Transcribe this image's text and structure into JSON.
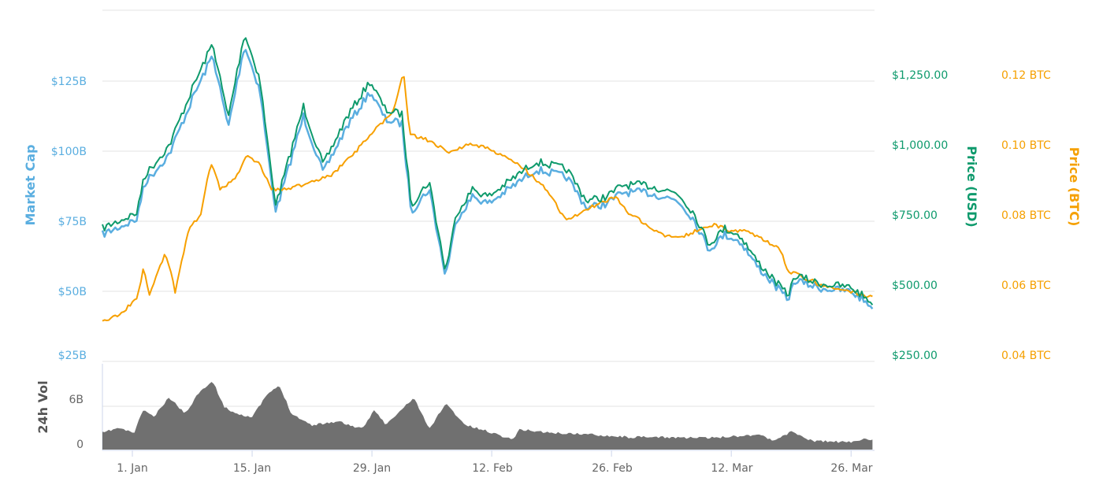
{
  "chart_data": {
    "type": "line",
    "x_unit": "days since 1 Jan",
    "xlim": [
      -3.5,
      86.6
    ],
    "x_ticks": [
      {
        "day": 0,
        "label": "1. Jan"
      },
      {
        "day": 14,
        "label": "15. Jan"
      },
      {
        "day": 28,
        "label": "29. Jan"
      },
      {
        "day": 42,
        "label": "12. Feb"
      },
      {
        "day": 56,
        "label": "26. Feb"
      },
      {
        "day": 70,
        "label": "12. Mar"
      },
      {
        "day": 84,
        "label": "26. Mar"
      }
    ],
    "axes": {
      "market_cap": {
        "title": "Market Cap",
        "ylim": [
          25,
          150
        ],
        "ticks": [
          {
            "v": 125,
            "label": "$125B"
          },
          {
            "v": 100,
            "label": "$100B"
          },
          {
            "v": 75,
            "label": "$75B"
          },
          {
            "v": 50,
            "label": "$50B"
          },
          {
            "v": 25,
            "label": "$25B"
          }
        ],
        "color": "#5aaee0"
      },
      "price_usd": {
        "title": "Price (USD)",
        "ylim": [
          250,
          1500
        ],
        "ticks": [
          {
            "v": 1250,
            "label": "$1,250.00"
          },
          {
            "v": 1000,
            "label": "$1,000.00"
          },
          {
            "v": 750,
            "label": "$750.00"
          },
          {
            "v": 500,
            "label": "$500.00"
          },
          {
            "v": 250,
            "label": "$250.00"
          }
        ],
        "color": "#0e9a6c"
      },
      "price_btc": {
        "title": "Price (BTC)",
        "ylim": [
          0.04,
          0.14
        ],
        "ticks": [
          {
            "v": 0.12,
            "label": "0.12 BTC"
          },
          {
            "v": 0.1,
            "label": "0.10 BTC"
          },
          {
            "v": 0.08,
            "label": "0.08 BTC"
          },
          {
            "v": 0.06,
            "label": "0.06 BTC"
          },
          {
            "v": 0.04,
            "label": "0.04 BTC"
          }
        ],
        "color": "#f7a000"
      },
      "volume": {
        "title": "24h Vol",
        "ylim": [
          0,
          11
        ],
        "ticks": [
          {
            "v": 6,
            "label": "6B"
          },
          {
            "v": 0,
            "label": "0"
          }
        ],
        "color": "#707070"
      }
    },
    "series": [
      {
        "name": "Market Cap",
        "unit": "B USD",
        "x": [
          -3.5,
          0.6,
          1.3,
          4.3,
          7.1,
          9.4,
          11.2,
          13.1,
          14.9,
          16.3,
          16.8,
          20.0,
          22.3,
          25.0,
          27.8,
          29.6,
          31.5,
          32.6,
          34.7,
          36.6,
          37.9,
          39.8,
          41.6,
          45.3,
          47.1,
          49.0,
          50.8,
          53.1,
          55.4,
          57.3,
          60.0,
          63.7,
          65.6,
          67.4,
          69.2,
          71.1,
          72.9,
          76.6,
          77.5,
          80.3,
          84.0,
          86.6
        ],
        "values": [
          70.3,
          75.8,
          88.0,
          98.9,
          119.3,
          134.3,
          108.4,
          137.8,
          122.0,
          88.0,
          78.5,
          112.5,
          92.2,
          108.4,
          121.3,
          111.2,
          109.8,
          78.5,
          86.6,
          55.3,
          75.8,
          83.9,
          81.2,
          89.3,
          93.4,
          92.2,
          90.7,
          79.8,
          81.2,
          85.3,
          85.3,
          82.5,
          75.8,
          64.8,
          70.3,
          67.6,
          59.4,
          47.1,
          53.9,
          51.2,
          49.9,
          44.4
        ]
      },
      {
        "name": "Price (USD)",
        "unit": "USD",
        "x": [
          -3.5,
          0.6,
          1.3,
          4.3,
          7.1,
          9.4,
          11.2,
          13.1,
          14.9,
          16.3,
          16.8,
          20.0,
          22.3,
          25.0,
          27.8,
          29.6,
          31.5,
          32.6,
          34.7,
          36.6,
          37.9,
          39.8,
          41.6,
          45.3,
          47.1,
          49.0,
          50.8,
          53.1,
          55.4,
          57.3,
          60.0,
          63.7,
          65.6,
          67.4,
          69.2,
          71.1,
          72.9,
          76.6,
          77.5,
          80.3,
          84.0,
          86.6
        ],
        "values": [
          725,
          781,
          907,
          1020,
          1230,
          1385,
          1118,
          1421,
          1258,
          907,
          809,
          1160,
          950,
          1118,
          1250,
          1146,
          1132,
          809,
          893,
          570,
          781,
          865,
          837,
          921,
          963,
          950,
          935,
          823,
          837,
          879,
          879,
          851,
          781,
          668,
          725,
          697,
          612,
          486,
          556,
          528,
          514,
          458
        ]
      },
      {
        "name": "Price (BTC)",
        "unit": "BTC",
        "x": [
          -3.5,
          -1.7,
          0.6,
          1.3,
          2.0,
          3.9,
          5.0,
          6.6,
          8.0,
          9.2,
          10.3,
          12.2,
          13.5,
          14.9,
          16.3,
          19.5,
          23.2,
          26.9,
          28.7,
          30.6,
          31.7,
          32.4,
          34.7,
          37.0,
          39.8,
          43.5,
          45.3,
          48.1,
          50.8,
          53.6,
          56.4,
          58.2,
          61.9,
          64.6,
          67.9,
          70.2,
          72.0,
          75.7,
          76.6,
          80.3,
          84.0,
          86.6
        ],
        "values": [
          0.051,
          0.053,
          0.058,
          0.067,
          0.059,
          0.071,
          0.06,
          0.078,
          0.082,
          0.097,
          0.089,
          0.093,
          0.099,
          0.096,
          0.089,
          0.09,
          0.093,
          0.102,
          0.107,
          0.112,
          0.123,
          0.105,
          0.103,
          0.1,
          0.102,
          0.099,
          0.096,
          0.09,
          0.08,
          0.084,
          0.087,
          0.082,
          0.076,
          0.076,
          0.079,
          0.077,
          0.077,
          0.072,
          0.066,
          0.062,
          0.06,
          0.058
        ]
      },
      {
        "name": "24h Vol",
        "unit": "B USD",
        "x": [
          -3.5,
          -1.7,
          0.2,
          1.3,
          2.5,
          4.3,
          6.2,
          8.0,
          9.4,
          10.8,
          12.2,
          14.0,
          15.8,
          17.2,
          18.6,
          20.9,
          24.1,
          26.9,
          28.3,
          29.6,
          30.6,
          32.9,
          34.7,
          36.6,
          38.9,
          41.6,
          44.4,
          45.3,
          49.0,
          53.6,
          58.2,
          62.8,
          67.4,
          73.4,
          74.8,
          77.1,
          79.4,
          84.0,
          85.8,
          86.6
        ],
        "values": [
          2.3,
          3.0,
          2.3,
          5.6,
          4.5,
          7.2,
          5.0,
          8.3,
          9.4,
          5.8,
          5.0,
          4.5,
          7.7,
          8.8,
          5.0,
          3.4,
          3.9,
          2.8,
          5.6,
          3.4,
          4.5,
          7.2,
          2.8,
          6.4,
          3.4,
          2.5,
          1.4,
          2.8,
          2.3,
          2.1,
          1.7,
          1.7,
          1.6,
          2.1,
          1.2,
          2.5,
          1.2,
          1.0,
          1.6,
          1.2
        ]
      }
    ],
    "grid": true,
    "legend": "none"
  }
}
